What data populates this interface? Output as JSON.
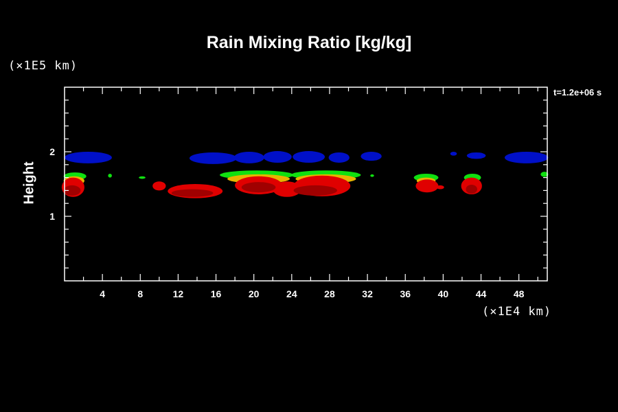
{
  "chart_data": {
    "type": "heatmap",
    "title": "Rain Mixing Ratio [kg/kg]",
    "xlabel": "(×1E4 km)",
    "ylabel": "Height",
    "yunit": "(×1E5 km)",
    "annotation": "t=1.2e+06 s",
    "xlim": [
      0,
      51
    ],
    "ylim": [
      0,
      3
    ],
    "xticks": [
      4,
      8,
      12,
      16,
      20,
      24,
      28,
      32,
      36,
      40,
      44,
      48
    ],
    "yticks": [
      1,
      2
    ],
    "grid": false,
    "colors": {
      "blue": "#0010c8",
      "green": "#10e010",
      "yellow": "#e8b400",
      "red": "#e00000",
      "darkred": "#a00000"
    },
    "features": [
      {
        "level": "blue",
        "cx": 2.5,
        "cy": 1.91,
        "rx": 2.5,
        "ry": 0.09
      },
      {
        "level": "blue",
        "cx": 15.7,
        "cy": 1.9,
        "rx": 2.5,
        "ry": 0.09
      },
      {
        "level": "blue",
        "cx": 19.5,
        "cy": 1.91,
        "rx": 1.6,
        "ry": 0.09
      },
      {
        "level": "blue",
        "cx": 22.5,
        "cy": 1.92,
        "rx": 1.5,
        "ry": 0.09
      },
      {
        "level": "blue",
        "cx": 25.8,
        "cy": 1.92,
        "rx": 1.7,
        "ry": 0.09
      },
      {
        "level": "blue",
        "cx": 29.0,
        "cy": 1.91,
        "rx": 1.1,
        "ry": 0.08
      },
      {
        "level": "blue",
        "cx": 32.4,
        "cy": 1.93,
        "rx": 1.1,
        "ry": 0.07
      },
      {
        "level": "blue",
        "cx": 41.1,
        "cy": 1.97,
        "rx": 0.35,
        "ry": 0.03
      },
      {
        "level": "blue",
        "cx": 43.5,
        "cy": 1.94,
        "rx": 1.0,
        "ry": 0.05
      },
      {
        "level": "blue",
        "cx": 48.8,
        "cy": 1.91,
        "rx": 2.3,
        "ry": 0.09
      },
      {
        "level": "green",
        "cx": 1.1,
        "cy": 1.62,
        "rx": 1.2,
        "ry": 0.06
      },
      {
        "level": "green",
        "cx": 4.8,
        "cy": 1.63,
        "rx": 0.2,
        "ry": 0.03
      },
      {
        "level": "green",
        "cx": 8.2,
        "cy": 1.6,
        "rx": 0.35,
        "ry": 0.02
      },
      {
        "level": "green",
        "cx": 20.3,
        "cy": 1.64,
        "rx": 3.9,
        "ry": 0.07
      },
      {
        "level": "green",
        "cx": 27.6,
        "cy": 1.64,
        "rx": 3.7,
        "ry": 0.07
      },
      {
        "level": "green",
        "cx": 32.5,
        "cy": 1.63,
        "rx": 0.2,
        "ry": 0.02
      },
      {
        "level": "green",
        "cx": 38.2,
        "cy": 1.6,
        "rx": 1.3,
        "ry": 0.06
      },
      {
        "level": "green",
        "cx": 43.1,
        "cy": 1.6,
        "rx": 0.9,
        "ry": 0.06
      },
      {
        "level": "green",
        "cx": 50.7,
        "cy": 1.65,
        "rx": 0.4,
        "ry": 0.04
      },
      {
        "level": "yellow",
        "cx": 1.0,
        "cy": 1.55,
        "rx": 1.1,
        "ry": 0.07
      },
      {
        "level": "yellow",
        "cx": 20.5,
        "cy": 1.58,
        "rx": 3.3,
        "ry": 0.07
      },
      {
        "level": "yellow",
        "cx": 27.6,
        "cy": 1.58,
        "rx": 3.2,
        "ry": 0.07
      },
      {
        "level": "yellow",
        "cx": 38.2,
        "cy": 1.55,
        "rx": 1.0,
        "ry": 0.05
      },
      {
        "level": "yellow",
        "cx": 43.1,
        "cy": 1.55,
        "rx": 0.6,
        "ry": 0.04
      },
      {
        "level": "red",
        "cx": 0.9,
        "cy": 1.45,
        "rx": 1.2,
        "ry": 0.15
      },
      {
        "level": "red",
        "cx": 10.0,
        "cy": 1.47,
        "rx": 0.7,
        "ry": 0.07
      },
      {
        "level": "red",
        "cx": 13.8,
        "cy": 1.39,
        "rx": 2.9,
        "ry": 0.11
      },
      {
        "level": "red",
        "cx": 20.5,
        "cy": 1.48,
        "rx": 2.5,
        "ry": 0.14
      },
      {
        "level": "red",
        "cx": 23.5,
        "cy": 1.42,
        "rx": 1.5,
        "ry": 0.12
      },
      {
        "level": "red",
        "cx": 27.2,
        "cy": 1.47,
        "rx": 3.0,
        "ry": 0.16
      },
      {
        "level": "red",
        "cx": 38.3,
        "cy": 1.47,
        "rx": 1.2,
        "ry": 0.1
      },
      {
        "level": "red",
        "cx": 39.7,
        "cy": 1.45,
        "rx": 0.4,
        "ry": 0.03
      },
      {
        "level": "red",
        "cx": 43.0,
        "cy": 1.47,
        "rx": 1.1,
        "ry": 0.13
      },
      {
        "level": "darkred",
        "cx": 0.8,
        "cy": 1.4,
        "rx": 0.9,
        "ry": 0.08
      },
      {
        "level": "darkred",
        "cx": 13.5,
        "cy": 1.36,
        "rx": 2.2,
        "ry": 0.06
      },
      {
        "level": "darkred",
        "cx": 20.5,
        "cy": 1.45,
        "rx": 1.8,
        "ry": 0.08
      },
      {
        "level": "darkred",
        "cx": 26.5,
        "cy": 1.4,
        "rx": 2.3,
        "ry": 0.08
      },
      {
        "level": "darkred",
        "cx": 43.0,
        "cy": 1.42,
        "rx": 0.6,
        "ry": 0.07
      }
    ]
  }
}
